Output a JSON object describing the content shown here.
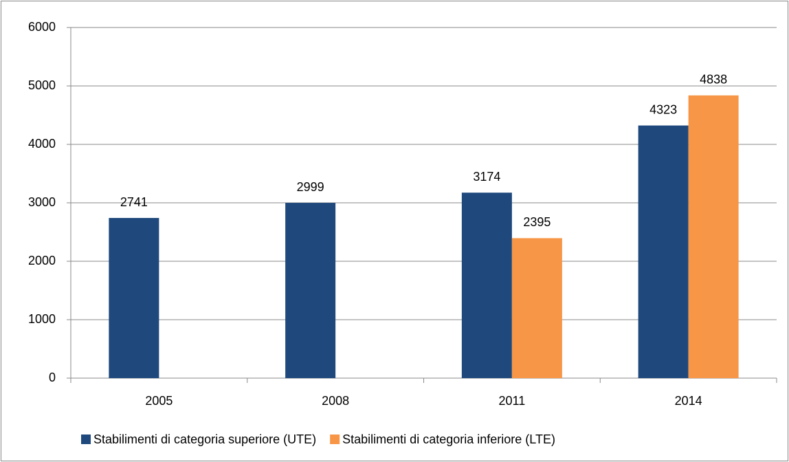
{
  "chart_data": {
    "type": "bar",
    "categories": [
      "2005",
      "2008",
      "2011",
      "2014"
    ],
    "series": [
      {
        "name": "Stabilimenti di categoria superiore (UTE)",
        "color": "#1f497d",
        "values": [
          2741,
          2999,
          3174,
          4323
        ]
      },
      {
        "name": "Stabilimenti di categoria inferiore (LTE)",
        "color": "#f79646",
        "values": [
          null,
          null,
          2395,
          4838
        ]
      }
    ],
    "ylim": [
      0,
      6000
    ],
    "yticks": [
      0,
      1000,
      2000,
      3000,
      4000,
      5000,
      6000
    ],
    "grid": true,
    "legend": "bottom"
  }
}
